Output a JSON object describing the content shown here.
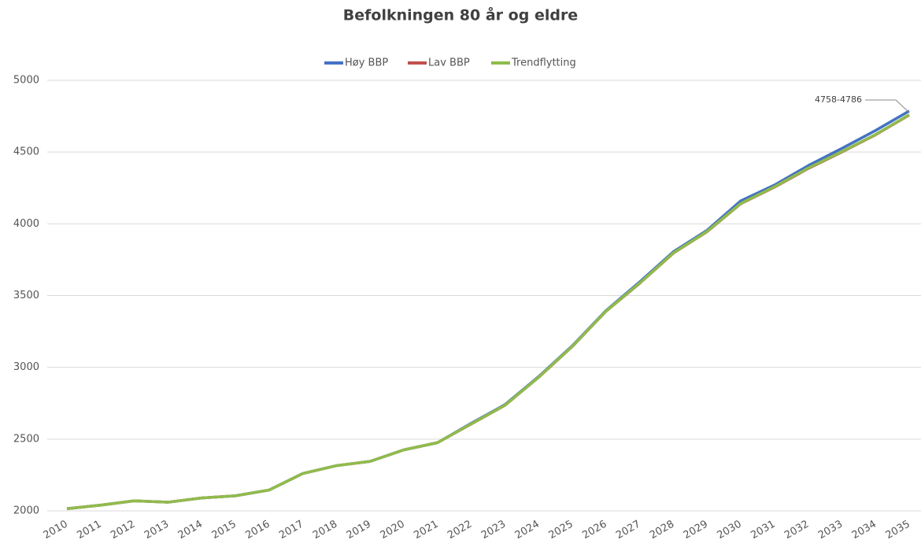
{
  "chart_data": {
    "type": "line",
    "title": "Befolkningen 80 år og eldre",
    "categories": [
      "2010",
      "2011",
      "2012",
      "2013",
      "2014",
      "2015",
      "2016",
      "2017",
      "2018",
      "2019",
      "2020",
      "2021",
      "2022",
      "2023",
      "2024",
      "2025",
      "2026",
      "2027",
      "2028",
      "2029",
      "2030",
      "2031",
      "2032",
      "2033",
      "2034",
      "2035"
    ],
    "series": [
      {
        "name": "Høy BBP",
        "color": "#4472c4",
        "values": [
          2015,
          2040,
          2070,
          2060,
          2090,
          2105,
          2145,
          2260,
          2315,
          2345,
          2425,
          2475,
          2610,
          2740,
          2935,
          3150,
          3395,
          3595,
          3805,
          3955,
          4160,
          4270,
          4405,
          4525,
          4650,
          4786
        ]
      },
      {
        "name": "Lav BBP",
        "color": "#c0504d",
        "values": [
          2015,
          2040,
          2070,
          2060,
          2090,
          2105,
          2145,
          2260,
          2315,
          2345,
          2425,
          2475,
          2605,
          2735,
          2930,
          3145,
          3390,
          3585,
          3795,
          3945,
          4140,
          4255,
          4385,
          4500,
          4620,
          4758
        ]
      },
      {
        "name": "Trendflytting",
        "color": "#8fbc4b",
        "values": [
          2015,
          2040,
          2070,
          2060,
          2090,
          2105,
          2145,
          2260,
          2315,
          2345,
          2425,
          2475,
          2606,
          2736,
          2931,
          3146,
          3391,
          3587,
          3797,
          3947,
          4142,
          4258,
          4388,
          4503,
          4622,
          4760
        ]
      }
    ],
    "annotation": "4758-4786",
    "ylim": [
      2000,
      5000
    ],
    "yticks": [
      2000,
      2500,
      3000,
      3500,
      4000,
      4500,
      5000
    ],
    "grid": true,
    "legend": "top"
  }
}
